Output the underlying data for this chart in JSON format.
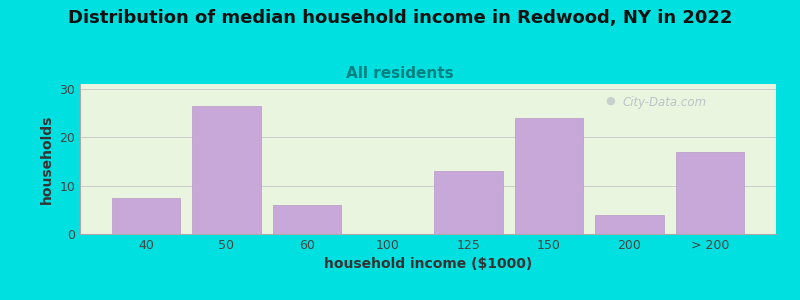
{
  "title": "Distribution of median household income in Redwood, NY in 2022",
  "subtitle": "All residents",
  "xlabel": "household income ($1000)",
  "ylabel": "households",
  "bar_labels": [
    "40",
    "50",
    "60",
    "100",
    "125",
    "150",
    "200",
    "> 200"
  ],
  "bar_values": [
    7.5,
    26.5,
    6.0,
    0.0,
    13.0,
    24.0,
    4.0,
    17.0
  ],
  "bar_color": "#c8a8d8",
  "bar_edge_color": "#b898c8",
  "ylim": [
    0,
    31
  ],
  "yticks": [
    0,
    10,
    20,
    30
  ],
  "background_color": "#00e0e0",
  "plot_bg_color": "#eaf5e0",
  "title_fontsize": 13,
  "subtitle_fontsize": 11,
  "subtitle_color": "#008080",
  "axis_label_fontsize": 10,
  "tick_fontsize": 9,
  "watermark_text": "City-Data.com",
  "watermark_color": "#b0b8c0"
}
